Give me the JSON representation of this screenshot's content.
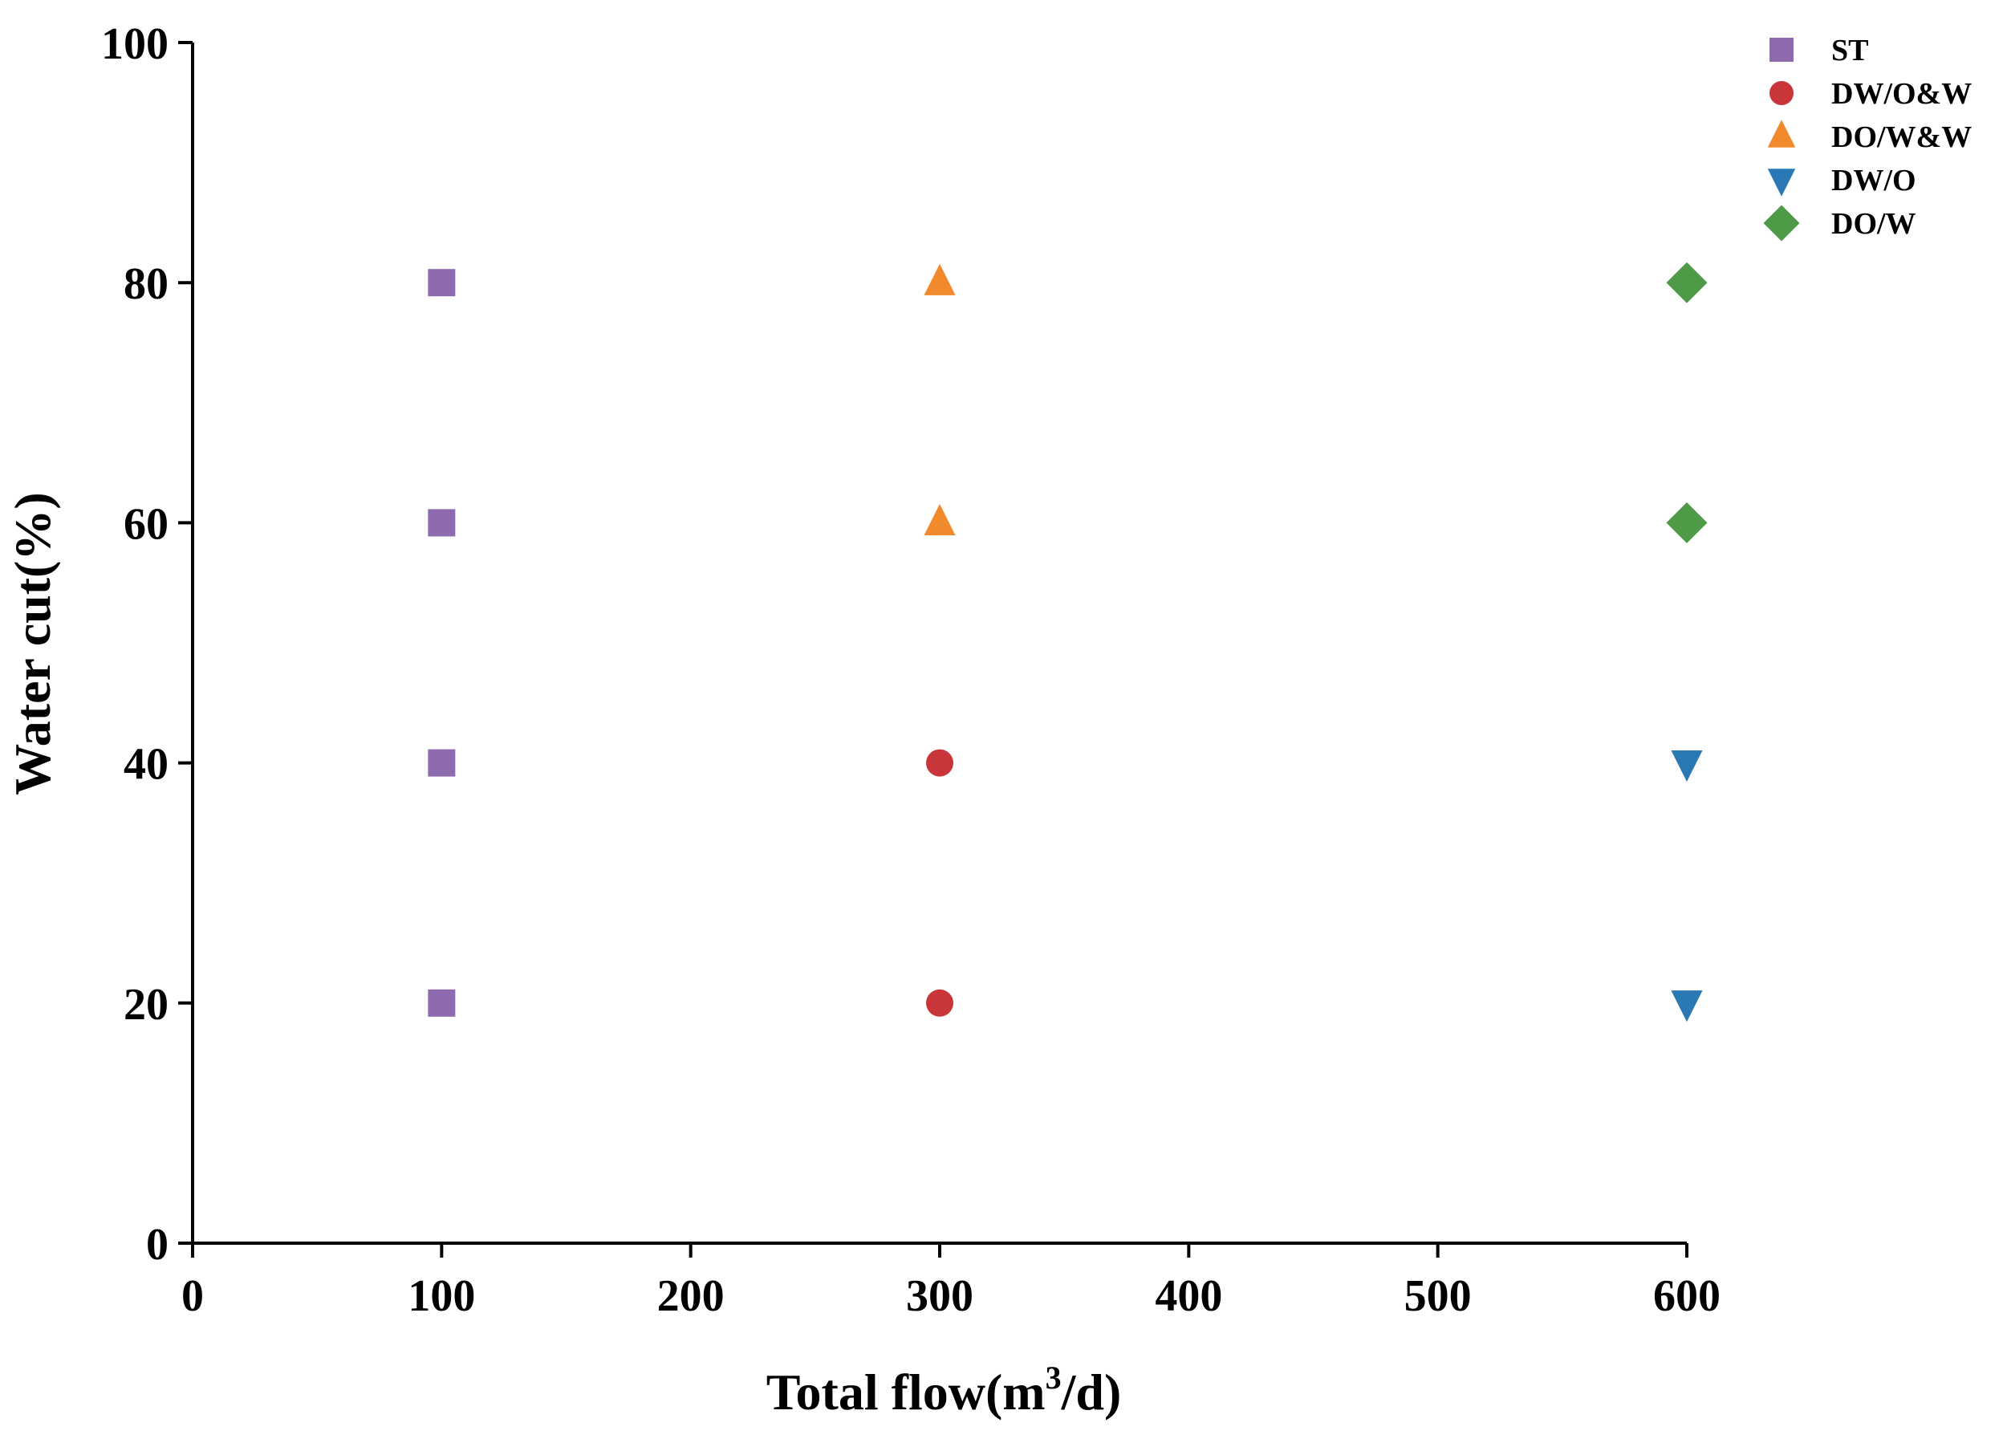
{
  "chart_data": {
    "type": "scatter",
    "title": "",
    "xlabel": "Total flow(m",
    "xlabel_sup": "3",
    "xlabel_tail": "/d)",
    "ylabel": "Water cut(%)",
    "xlim": [
      0,
      600
    ],
    "ylim": [
      0,
      100
    ],
    "x_ticks": [
      0,
      100,
      200,
      300,
      400,
      500,
      600
    ],
    "y_ticks": [
      0,
      20,
      40,
      60,
      80,
      100
    ],
    "x_tick_labels": [
      "0",
      "100",
      "200",
      "300",
      "400",
      "500",
      "600"
    ],
    "y_tick_labels": [
      "0",
      "20",
      "40",
      "60",
      "80",
      "100"
    ],
    "grid": false,
    "legend_position": "top-right",
    "series": [
      {
        "name": "ST",
        "marker": "square",
        "color": "#8e6bae",
        "points": [
          [
            100,
            20
          ],
          [
            100,
            40
          ],
          [
            100,
            60
          ],
          [
            100,
            80
          ]
        ]
      },
      {
        "name": "DW/O&W",
        "marker": "circle",
        "color": "#c8363a",
        "points": [
          [
            300,
            20
          ],
          [
            300,
            40
          ]
        ]
      },
      {
        "name": "DO/W&W",
        "marker": "triangle-up",
        "color": "#f08a2c",
        "points": [
          [
            300,
            60
          ],
          [
            300,
            80
          ]
        ]
      },
      {
        "name": "DW/O",
        "marker": "triangle-down",
        "color": "#2a79b5",
        "points": [
          [
            600,
            20
          ],
          [
            600,
            40
          ]
        ]
      },
      {
        "name": "DO/W",
        "marker": "diamond",
        "color": "#4f9a47",
        "points": [
          [
            600,
            60
          ],
          [
            600,
            80
          ]
        ]
      }
    ]
  }
}
